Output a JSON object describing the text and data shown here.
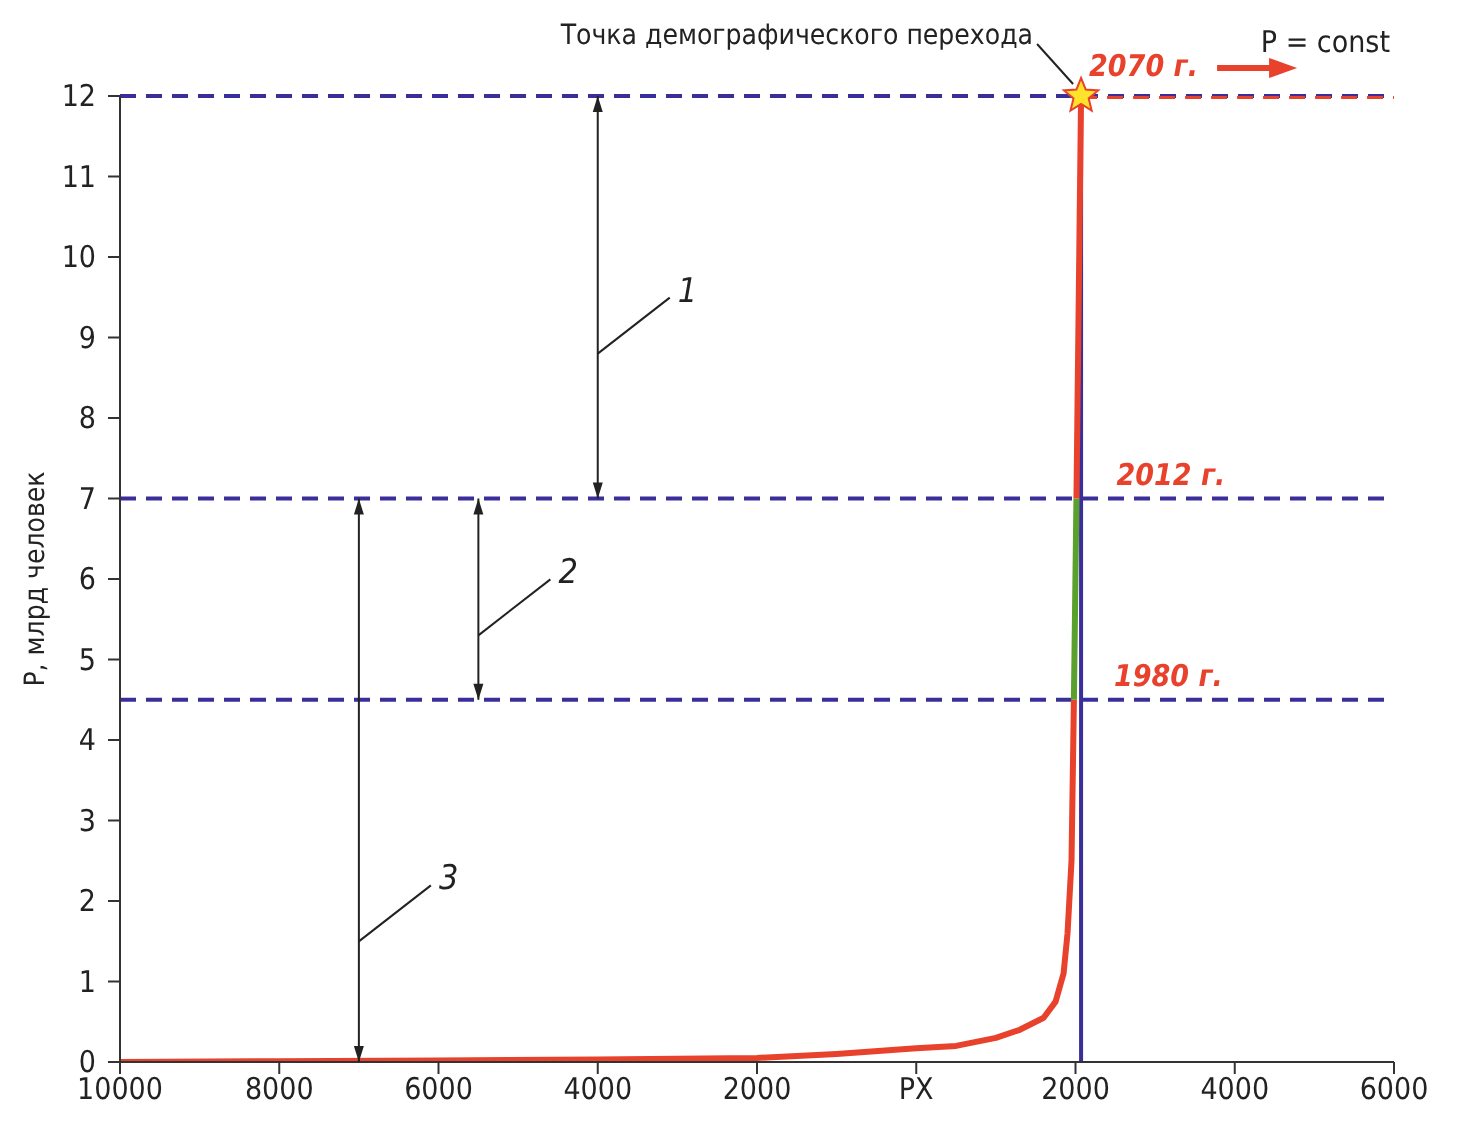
{
  "chart_data": {
    "type": "line",
    "ylabel": "P, млрд человек",
    "xlim": [
      -10000,
      6000
    ],
    "ylim": [
      0,
      12
    ],
    "xticks": [
      {
        "value": -10000,
        "label": "10000"
      },
      {
        "value": -8000,
        "label": "8000"
      },
      {
        "value": -6000,
        "label": "6000"
      },
      {
        "value": -4000,
        "label": "4000"
      },
      {
        "value": -2000,
        "label": "2000"
      },
      {
        "value": 0,
        "label": "РХ"
      },
      2000,
      4000,
      6000
    ],
    "yticks": [
      0,
      1,
      2,
      3,
      4,
      5,
      6,
      7,
      8,
      9,
      10,
      11,
      12
    ],
    "grid": false,
    "legend": false,
    "series": [
      {
        "color": "#e8412c",
        "line_style": "solid",
        "x": [
          -10000,
          -8000,
          -6000,
          -4000,
          -2000,
          -1000,
          0,
          500,
          1000,
          1300,
          1600,
          1750,
          1850,
          1900,
          1950,
          1980
        ],
        "values": [
          0,
          0.01,
          0.02,
          0.03,
          0.05,
          0.1,
          0.17,
          0.2,
          0.3,
          0.4,
          0.55,
          0.75,
          1.1,
          1.6,
          2.5,
          4.5
        ]
      },
      {
        "color": "#5aa02c",
        "line_style": "solid",
        "x": [
          1980,
          2012
        ],
        "values": [
          4.5,
          7
        ]
      },
      {
        "color": "#e8412c",
        "line_style": "solid",
        "x": [
          2012,
          2070
        ],
        "values": [
          7,
          12
        ]
      },
      {
        "color": "#e8412c",
        "line_style": "dashed",
        "x": [
          2070,
          6000
        ],
        "values": [
          12,
          12
        ]
      }
    ],
    "ref_lines": [
      {
        "axis": "y",
        "value": 12,
        "color": "#3a2f9a",
        "line_style": "dashed"
      },
      {
        "axis": "y",
        "value": 7,
        "color": "#3a2f9a",
        "line_style": "dashed"
      },
      {
        "axis": "y",
        "value": 4.5,
        "color": "#3a2f9a",
        "line_style": "dashed"
      },
      {
        "axis": "x",
        "value": 2070,
        "color": "#3a2f9a",
        "line_style": "solid"
      }
    ],
    "annotations": [
      {
        "text": "Точка демографического перехода",
        "x": 2070,
        "y": 12
      },
      {
        "text": "2070 г.",
        "x": 2070,
        "y": 12
      },
      "P = const",
      {
        "text": "2012 г.",
        "x": 2012,
        "y": 7
      },
      {
        "text": "1980 г.",
        "x": 1980,
        "y": 4.5
      },
      "1",
      "2",
      "3"
    ]
  }
}
